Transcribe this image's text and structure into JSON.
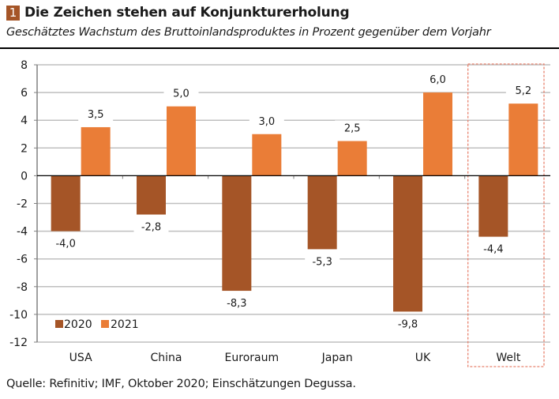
{
  "header": {
    "badge_number": "1",
    "title": "Die Zeichen stehen auf Konjunkturerholung",
    "subtitle": "Geschätztes Wachstum des Bruttoinlandsproduktes in Prozent gegenüber dem Vorjahr"
  },
  "source": "Quelle: Refinitiv; IMF, Oktober 2020; Einschätzungen Degussa.",
  "colors": {
    "series_2020": "#a55527",
    "series_2021": "#ea7d37",
    "highlight_box": "#e8826e",
    "gridline": "#bfbfbf",
    "axis": "#000000"
  },
  "chart_data": {
    "type": "bar",
    "title": "Die Zeichen stehen auf Konjunkturerholung",
    "subtitle": "Geschätztes Wachstum des Bruttoinlandsproduktes in Prozent gegenüber dem Vorjahr",
    "xlabel": "",
    "ylabel": "",
    "categories": [
      "USA",
      "China",
      "Euroraum",
      "Japan",
      "UK",
      "Welt"
    ],
    "series": [
      {
        "name": "2020",
        "values": [
          -4.0,
          -2.8,
          -8.3,
          -5.3,
          -9.8,
          -4.4
        ],
        "labels": [
          "-4,0",
          "-2,8",
          "-8,3",
          "-5,3",
          "-9,8",
          "-4,4"
        ]
      },
      {
        "name": "2021",
        "values": [
          3.5,
          5.0,
          3.0,
          2.5,
          6.0,
          5.2
        ],
        "labels": [
          "3,5",
          "5,0",
          "3,0",
          "2,5",
          "6,0",
          "5,2"
        ]
      }
    ],
    "ylim": [
      -12,
      8
    ],
    "yticks": [
      8,
      6,
      4,
      2,
      0,
      -2,
      -4,
      -6,
      -8,
      -10,
      -12
    ],
    "ytick_labels": [
      "8",
      "6",
      "4",
      "2",
      "0",
      "-2",
      "-4",
      "-6",
      "-8",
      "-10",
      "-12"
    ],
    "grid": true,
    "legend": {
      "entries": [
        "2020",
        "2021"
      ],
      "placement": "bottom-left"
    },
    "highlighted_category": "Welt"
  }
}
